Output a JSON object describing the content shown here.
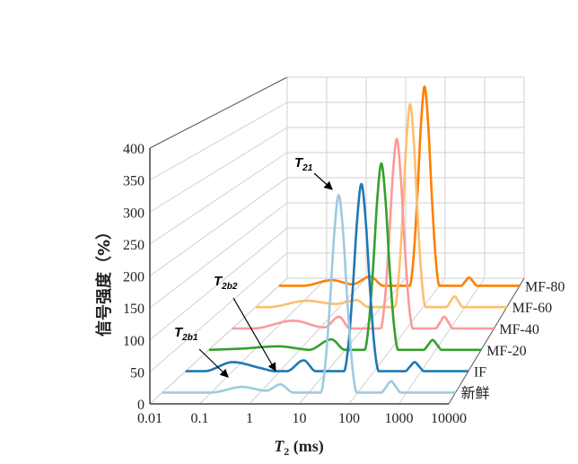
{
  "chart_data": {
    "type": "line",
    "style": "3d-waterfall",
    "xlabel_main": "T",
    "xlabel_sub": "2",
    "xlabel_unit": " (ms)",
    "ylabel": "信号强度（%）",
    "xscale": "log",
    "xlim": [
      0.01,
      10000
    ],
    "ylim": [
      0,
      400
    ],
    "x_ticks": [
      "0.01",
      "0.1",
      "1",
      "10",
      "100",
      "1000",
      "10000"
    ],
    "y_ticks": [
      "0",
      "50",
      "100",
      "150",
      "200",
      "250",
      "300",
      "350",
      "400"
    ],
    "grid": true,
    "legend": "series labels at right end of each trace",
    "series": [
      {
        "name": "新鲜",
        "color": "#9ecae1",
        "points": [
          [
            0.01,
            0
          ],
          [
            0.1,
            0
          ],
          [
            0.43,
            9
          ],
          [
            1.35,
            3
          ],
          [
            2.6,
            13
          ],
          [
            4.8,
            0
          ],
          [
            17.4,
            0
          ],
          [
            21.4,
            41
          ],
          [
            26.9,
            142
          ],
          [
            33.1,
            255
          ],
          [
            40.7,
            315
          ],
          [
            50.1,
            255
          ],
          [
            61.7,
            142
          ],
          [
            77.6,
            41
          ],
          [
            95.5,
            0
          ],
          [
            302,
            0
          ],
          [
            380,
            9
          ],
          [
            479,
            18
          ],
          [
            603,
            9
          ],
          [
            759,
            0
          ],
          [
            10000,
            0
          ]
        ]
      },
      {
        "name": "IF",
        "color": "#1f78b4",
        "points": [
          [
            0.01,
            0
          ],
          [
            0.025,
            0
          ],
          [
            0.1,
            15
          ],
          [
            0.4,
            5
          ],
          [
            0.8,
            0
          ],
          [
            1.4,
            0
          ],
          [
            3.2,
            18
          ],
          [
            5.8,
            0
          ],
          [
            22.9,
            0
          ],
          [
            28.2,
            40
          ],
          [
            35.5,
            140
          ],
          [
            43.7,
            251
          ],
          [
            53.7,
            310
          ],
          [
            66.1,
            251
          ],
          [
            81.3,
            140
          ],
          [
            102,
            40
          ],
          [
            126,
            0
          ],
          [
            457,
            0
          ],
          [
            575,
            7.5
          ],
          [
            724,
            15
          ],
          [
            912,
            7.5
          ],
          [
            1148,
            0
          ],
          [
            10000,
            0
          ]
        ]
      },
      {
        "name": "MF-20",
        "color": "#33a02c",
        "points": [
          [
            0.01,
            0
          ],
          [
            0.05,
            2
          ],
          [
            0.34,
            6
          ],
          [
            1.2,
            1
          ],
          [
            1.6,
            0
          ],
          [
            5,
            18
          ],
          [
            10,
            0
          ],
          [
            26.9,
            0
          ],
          [
            33.1,
            42
          ],
          [
            41.7,
            144
          ],
          [
            51.3,
            260
          ],
          [
            63.1,
            321
          ],
          [
            77.6,
            260
          ],
          [
            95.5,
            144
          ],
          [
            120,
            42
          ],
          [
            148,
            0
          ],
          [
            537,
            0
          ],
          [
            676,
            8.5
          ],
          [
            851,
            17
          ],
          [
            1072,
            8.5
          ],
          [
            1349,
            0
          ],
          [
            10000,
            0
          ]
        ]
      },
      {
        "name": "MF-40",
        "color": "#fb9a99",
        "points": [
          [
            0.01,
            0
          ],
          [
            0.03,
            0
          ],
          [
            0.25,
            14
          ],
          [
            1.3,
            2
          ],
          [
            2.8,
            21
          ],
          [
            5,
            0
          ],
          [
            25.1,
            0
          ],
          [
            30.9,
            44
          ],
          [
            38.9,
            153
          ],
          [
            47.9,
            275
          ],
          [
            58.9,
            340
          ],
          [
            72.4,
            275
          ],
          [
            89.1,
            153
          ],
          [
            112,
            44
          ],
          [
            138,
            0
          ],
          [
            457,
            0
          ],
          [
            575,
            10.5
          ],
          [
            724,
            21
          ],
          [
            912,
            10.5
          ],
          [
            1148,
            0
          ],
          [
            10000,
            0
          ]
        ]
      },
      {
        "name": "MF-60",
        "color": "#fdbf6f",
        "points": [
          [
            0.01,
            0
          ],
          [
            0.02,
            0
          ],
          [
            0.17,
            12
          ],
          [
            0.8,
            6
          ],
          [
            2.6,
            13
          ],
          [
            5,
            0
          ],
          [
            20.9,
            0
          ],
          [
            25.7,
            49
          ],
          [
            32.4,
            171
          ],
          [
            39.8,
            308
          ],
          [
            49.0,
            380
          ],
          [
            60.3,
            308
          ],
          [
            74.1,
            171
          ],
          [
            93.3,
            49
          ],
          [
            115,
            0
          ],
          [
            355,
            0
          ],
          [
            447,
            10
          ],
          [
            562,
            20
          ],
          [
            708,
            10
          ],
          [
            891,
            0
          ],
          [
            10000,
            0
          ]
        ]
      },
      {
        "name": "MF-80",
        "color": "#ff7f00",
        "points": [
          [
            0.01,
            0
          ],
          [
            0.04,
            0
          ],
          [
            0.21,
            11
          ],
          [
            0.68,
            3
          ],
          [
            1.9,
            18
          ],
          [
            4,
            0
          ],
          [
            18.2,
            0
          ],
          [
            22.4,
            51
          ],
          [
            28.2,
            176
          ],
          [
            34.7,
            316
          ],
          [
            42.7,
            390
          ],
          [
            52.5,
            316
          ],
          [
            64.6,
            176
          ],
          [
            81.3,
            51
          ],
          [
            100,
            0
          ],
          [
            347,
            0
          ],
          [
            437,
            8
          ],
          [
            550,
            16
          ],
          [
            692,
            8
          ],
          [
            871,
            0
          ],
          [
            10000,
            0
          ]
        ]
      }
    ],
    "annotations": [
      {
        "main": "T",
        "sub": "21"
      },
      {
        "main": "T",
        "sub": "2b2"
      },
      {
        "main": "T",
        "sub": "2b1"
      }
    ]
  }
}
